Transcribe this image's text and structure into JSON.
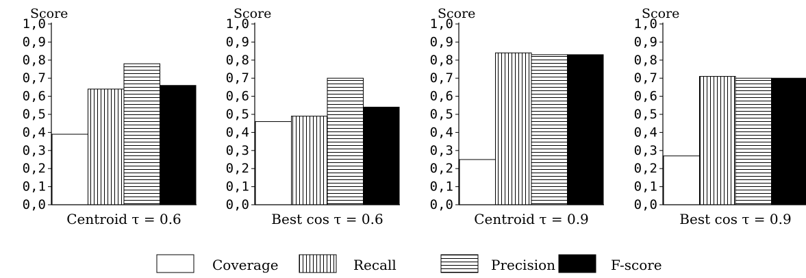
{
  "legend": {
    "items": [
      {
        "label": "Coverage",
        "pattern": "none",
        "fill": "#ffffff"
      },
      {
        "label": "Recall",
        "pattern": "vertical",
        "fill": "#ffffff"
      },
      {
        "label": "Precision",
        "pattern": "horizontal",
        "fill": "#ffffff"
      },
      {
        "label": "F-score",
        "pattern": "solid",
        "fill": "#000000"
      }
    ]
  },
  "chart_data": [
    {
      "type": "bar",
      "title": "",
      "xlabel": "Centroid τ = 0.6",
      "ylabel": "Score",
      "ylim": [
        0,
        1
      ],
      "yticks": [
        "0,0",
        "0,1",
        "0,2",
        "0,3",
        "0,4",
        "0,5",
        "0,6",
        "0,7",
        "0,8",
        "0,9",
        "1,0"
      ],
      "categories": [
        "Coverage",
        "Recall",
        "Precision",
        "F-score"
      ],
      "values": [
        0.39,
        0.64,
        0.78,
        0.66
      ],
      "grid": false
    },
    {
      "type": "bar",
      "title": "",
      "xlabel": "Best cos τ = 0.6",
      "ylabel": "Score",
      "ylim": [
        0,
        1
      ],
      "yticks": [
        "0,0",
        "0,1",
        "0,2",
        "0,3",
        "0,4",
        "0,5",
        "0,6",
        "0,7",
        "0,8",
        "0,9",
        "1,0"
      ],
      "categories": [
        "Coverage",
        "Recall",
        "Precision",
        "F-score"
      ],
      "values": [
        0.46,
        0.49,
        0.7,
        0.54
      ],
      "grid": false
    },
    {
      "type": "bar",
      "title": "",
      "xlabel": "Centroid τ = 0.9",
      "ylabel": "Score",
      "ylim": [
        0,
        1
      ],
      "yticks": [
        "0,0",
        "0,1",
        "0,2",
        "0,3",
        "0,4",
        "0,5",
        "0,6",
        "0,7",
        "0,8",
        "0,9",
        "1,0"
      ],
      "categories": [
        "Coverage",
        "Recall",
        "Precision",
        "F-score"
      ],
      "values": [
        0.25,
        0.84,
        0.83,
        0.83
      ],
      "grid": false
    },
    {
      "type": "bar",
      "title": "",
      "xlabel": "Best cos τ = 0.9",
      "ylabel": "Score",
      "ylim": [
        0,
        1
      ],
      "yticks": [
        "0,0",
        "0,1",
        "0,2",
        "0,3",
        "0,4",
        "0,5",
        "0,6",
        "0,7",
        "0,8",
        "0,9",
        "1,0"
      ],
      "categories": [
        "Coverage",
        "Recall",
        "Precision",
        "F-score"
      ],
      "values": [
        0.27,
        0.71,
        0.7,
        0.7
      ],
      "grid": false
    }
  ]
}
